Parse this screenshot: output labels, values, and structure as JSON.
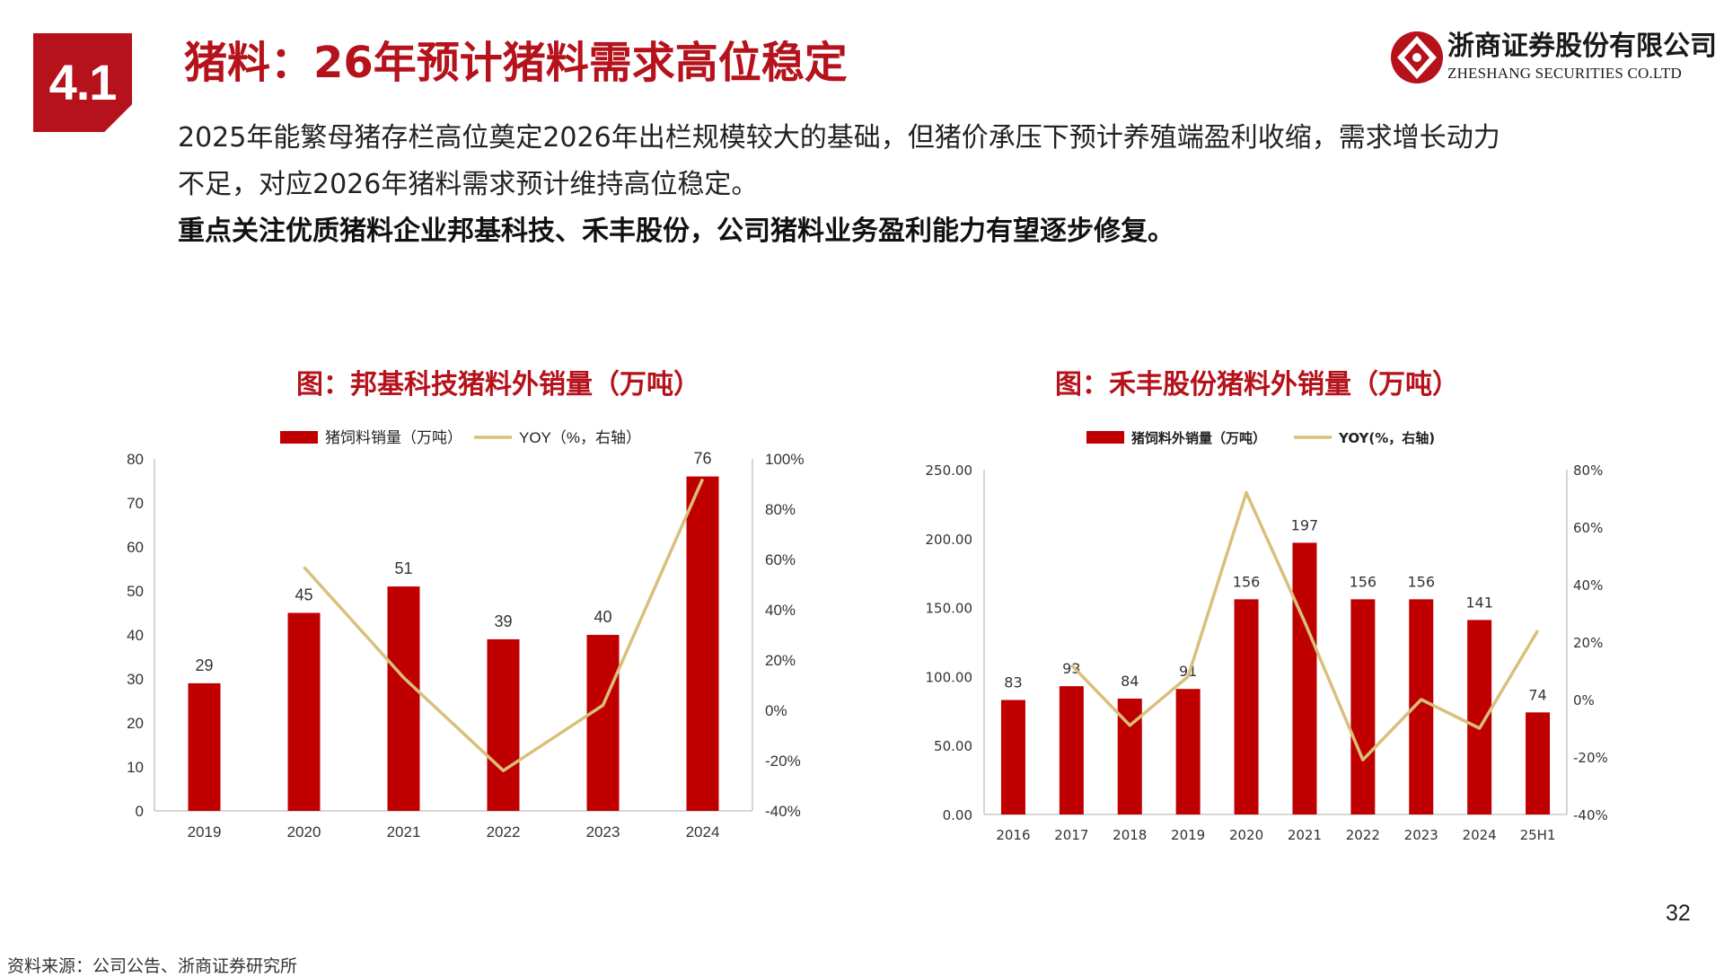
{
  "section": {
    "number": "4.1"
  },
  "title": "猪料：26年预计猪料需求高位稳定",
  "logo": {
    "cn": "浙商证券股份有限公司",
    "en": "ZHESHANG SECURITIES CO.LTD"
  },
  "body": {
    "p1": "2025年能繁母猪存栏高位奠定2026年出栏规模较大的基础，但猪价承压下预计养殖端盈利收缩，需求增长动力",
    "p2": "不足，对应2026年猪料需求预计维持高位稳定。",
    "p3": "重点关注优质猪料企业邦基科技、禾丰股份，公司猪料业务盈利能力有望逐步修复。"
  },
  "colors": {
    "accent": "#b5121b",
    "bar": "#c00000",
    "line": "#d9c07a"
  },
  "chart_data": [
    {
      "type": "bar+line",
      "title": "图：邦基科技猪料外销量（万吨）",
      "legend": [
        "猪饲料销量（万吨）",
        "YOY（%，右轴）"
      ],
      "categories": [
        "2019",
        "2020",
        "2021",
        "2022",
        "2023",
        "2024"
      ],
      "bar_values": [
        29,
        45,
        51,
        39,
        40,
        76
      ],
      "bar_labels": [
        "29",
        "45",
        "51",
        "39",
        "40",
        "76"
      ],
      "yoy_x": [
        "2020",
        "2021",
        "2022",
        "2023",
        "2024"
      ],
      "yoy_values": [
        57,
        13,
        -24,
        2,
        92
      ],
      "ylim_left": [
        0,
        80
      ],
      "yticks_left": [
        "0",
        "10",
        "20",
        "30",
        "40",
        "50",
        "60",
        "70",
        "80"
      ],
      "ylim_right": [
        -40,
        100
      ],
      "yticks_right": [
        "-40%",
        "-20%",
        "0%",
        "20%",
        "40%",
        "60%",
        "80%",
        "100%"
      ],
      "legend_position": "top"
    },
    {
      "type": "bar+line",
      "title": "图：禾丰股份猪料外销量（万吨）",
      "legend": [
        "猪饲料外销量（万吨）",
        "YOY(%，右轴)"
      ],
      "categories": [
        "2016",
        "2017",
        "2018",
        "2019",
        "2020",
        "2021",
        "2022",
        "2023",
        "2024",
        "25H1"
      ],
      "bar_values": [
        83,
        93,
        84,
        91,
        156,
        197,
        156,
        156,
        141,
        74
      ],
      "bar_labels": [
        "83",
        "93",
        "84",
        "91",
        "156",
        "197",
        "156",
        "156",
        "141",
        "74"
      ],
      "yoy_x": [
        "2017",
        "2018",
        "2019",
        "2020",
        "2021",
        "2022",
        "2023",
        "2024",
        "25H1"
      ],
      "yoy_values": [
        12,
        -9,
        8,
        72,
        27,
        -21,
        0,
        -10,
        24
      ],
      "ylim_left": [
        0,
        250
      ],
      "yticks_left": [
        "0.00",
        "50.00",
        "100.00",
        "150.00",
        "200.00",
        "250.00"
      ],
      "ylim_right": [
        -40,
        80
      ],
      "yticks_right": [
        "-40%",
        "-20%",
        "0%",
        "20%",
        "40%",
        "60%",
        "80%"
      ],
      "legend_position": "top"
    }
  ],
  "page_number": "32",
  "source": "资料来源：公司公告、浙商证券研究所"
}
